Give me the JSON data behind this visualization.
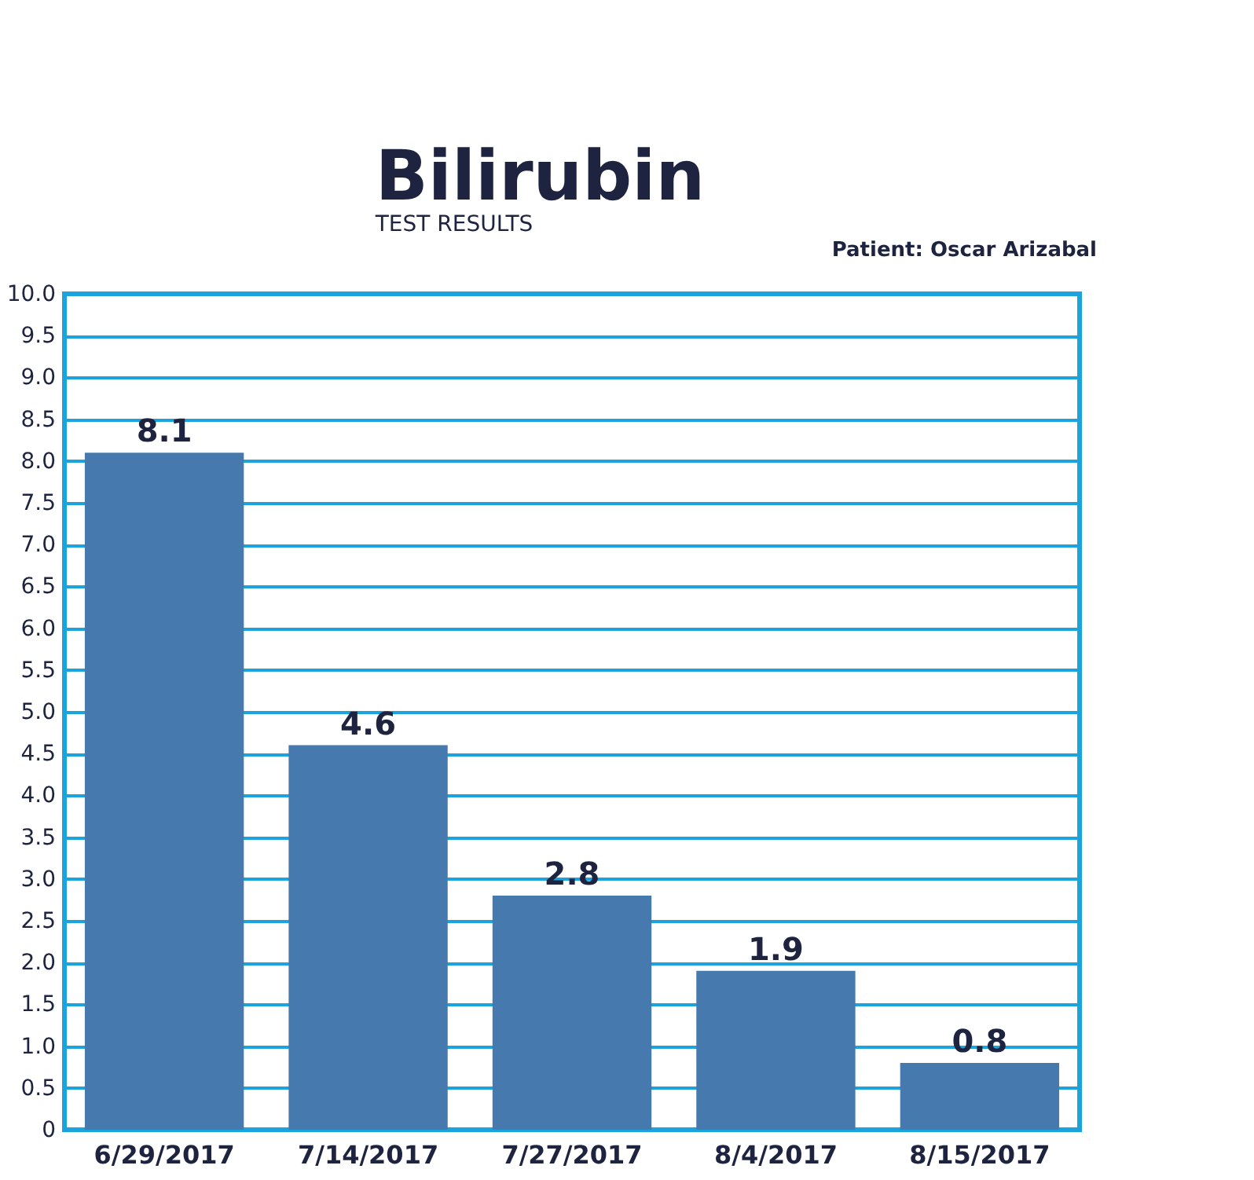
{
  "chart_data": {
    "type": "bar",
    "title": "Bilirubin",
    "subtitle": "TEST RESULTS",
    "annotations": [
      "Patient: Oscar Arizabal"
    ],
    "categories": [
      "6/29/2017",
      "7/14/2017",
      "7/27/2017",
      "8/4/2017",
      "8/15/2017"
    ],
    "values": [
      8.1,
      4.6,
      2.8,
      1.9,
      0.8
    ],
    "color": "#4679ad",
    "ylim": [
      0,
      10
    ],
    "yticks": [
      0,
      0.5,
      {
        "value": 1,
        "label": "1.0"
      },
      1.5,
      {
        "value": 2,
        "label": "2.0"
      },
      2.5,
      {
        "value": 3,
        "label": "3.0"
      },
      3.5,
      {
        "value": 4,
        "label": "4.0"
      },
      4.5,
      {
        "value": 5,
        "label": "5.0"
      },
      5.5,
      {
        "value": 6,
        "label": "6.0"
      },
      6.5,
      {
        "value": 7,
        "label": "7.0"
      },
      7.5,
      {
        "value": 8,
        "label": "8.0"
      },
      8.5,
      {
        "value": 9,
        "label": "9.0"
      },
      9.5,
      {
        "value": 10,
        "label": "10.0"
      }
    ],
    "grid": "y",
    "data_labels": true
  }
}
